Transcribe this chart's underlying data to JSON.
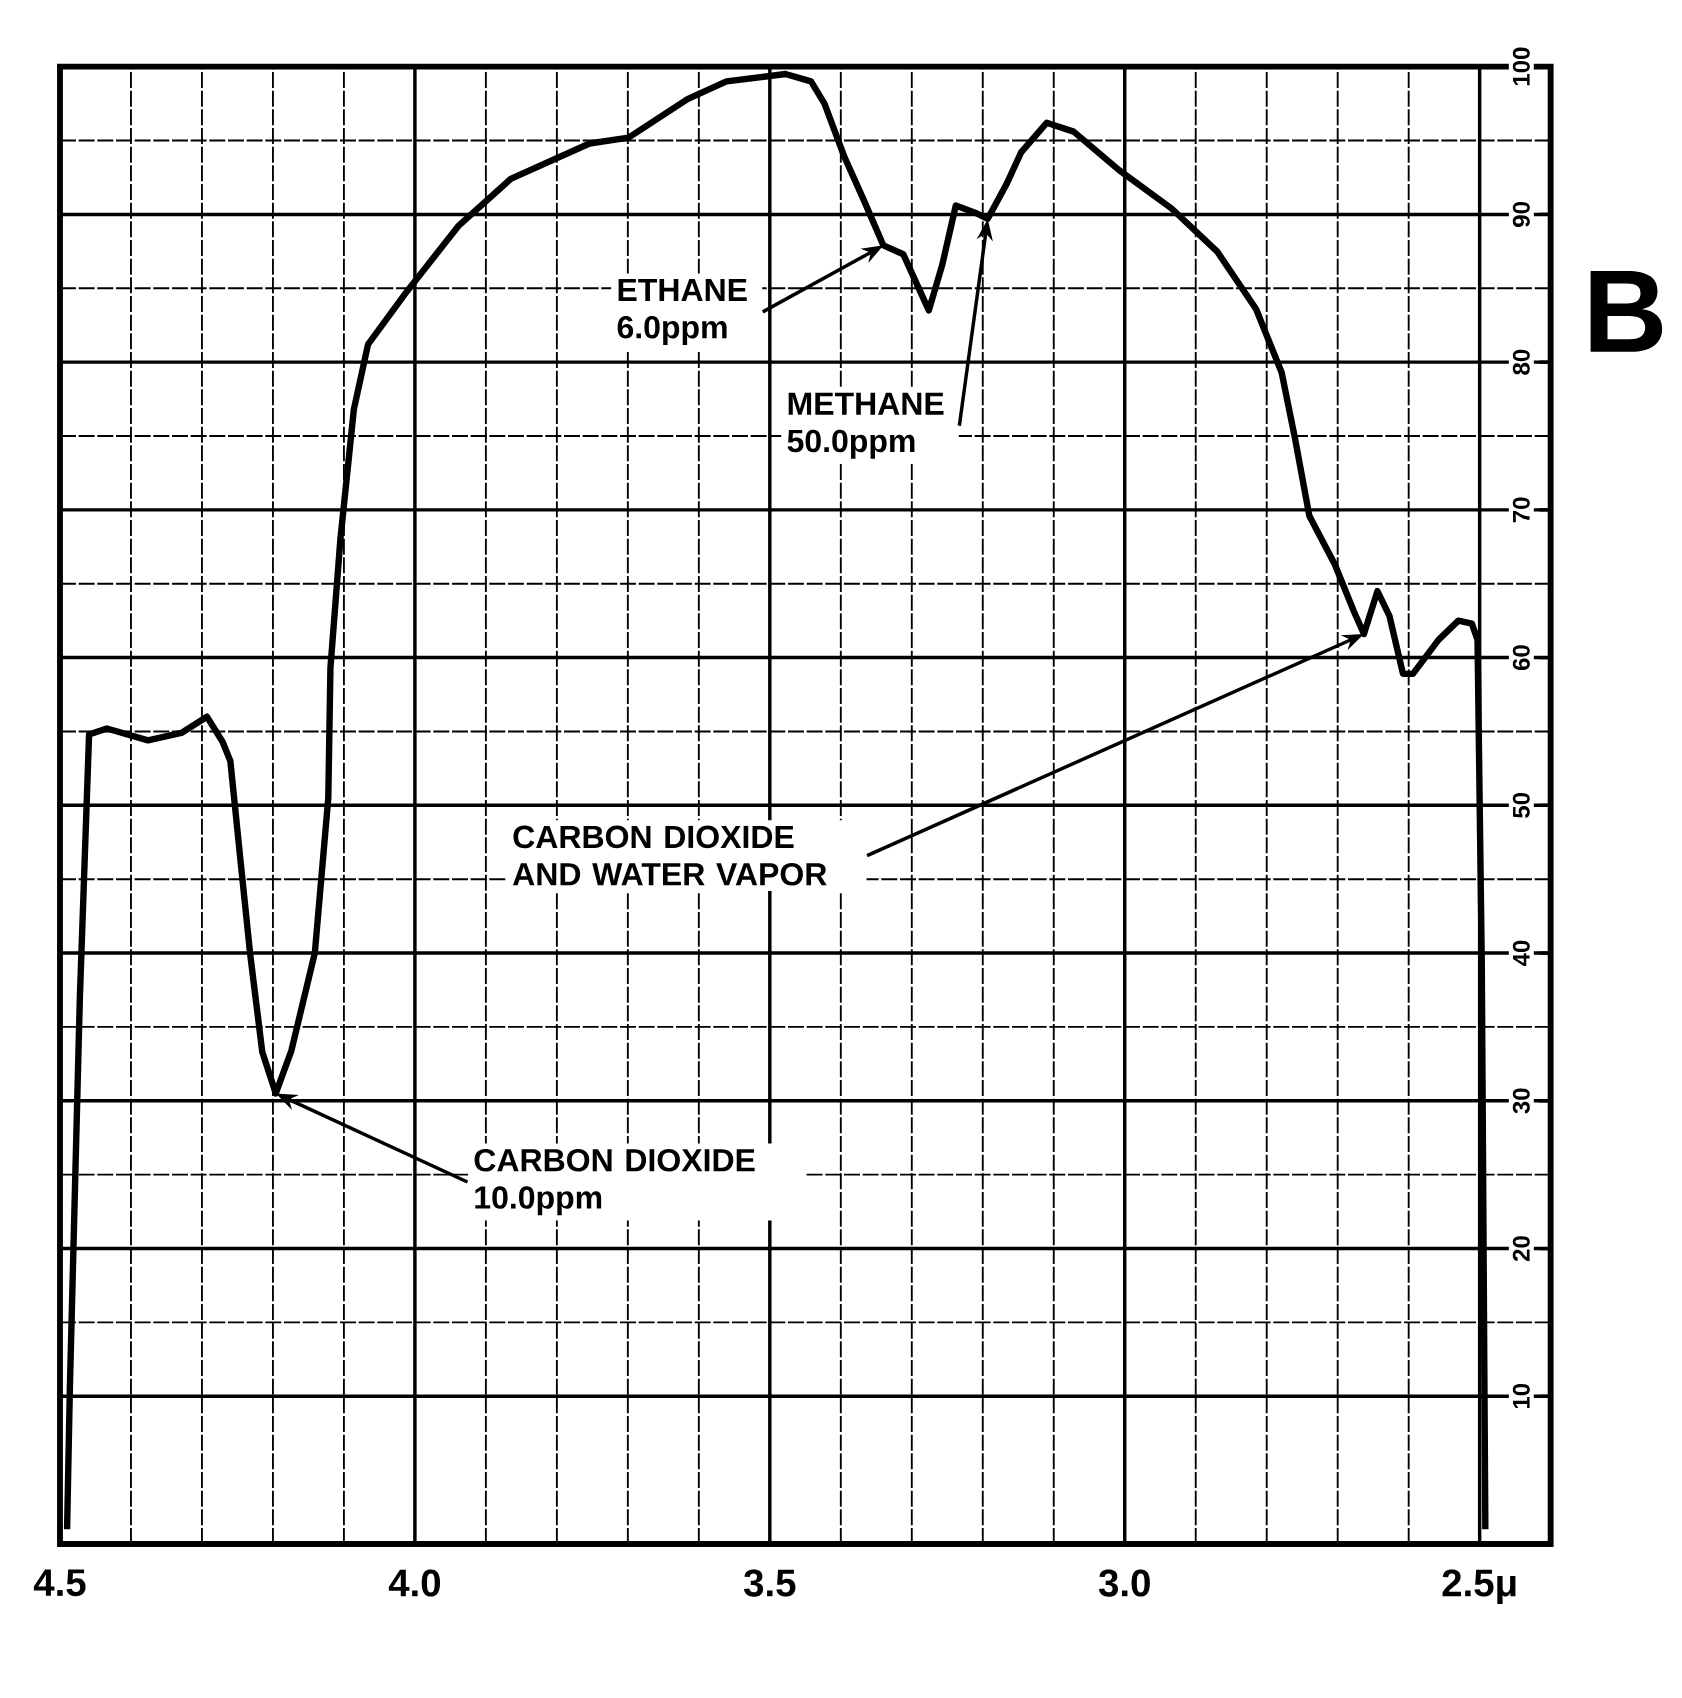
{
  "chart_data": {
    "type": "line",
    "x": [
      4.49,
      4.486,
      4.472,
      4.459,
      4.434,
      4.376,
      4.329,
      4.293,
      4.271,
      4.26,
      4.246,
      4.232,
      4.215,
      4.196,
      4.174,
      4.141,
      4.122,
      4.119,
      4.105,
      4.086,
      4.066,
      4.011,
      3.939,
      3.865,
      3.754,
      3.699,
      3.616,
      3.561,
      3.478,
      3.442,
      3.423,
      3.395,
      3.367,
      3.34,
      3.312,
      3.293,
      3.276,
      3.257,
      3.238,
      3.21,
      3.193,
      3.166,
      3.146,
      3.11,
      3.072,
      3.008,
      2.934,
      2.87,
      2.815,
      2.779,
      2.76,
      2.74,
      2.704,
      2.677,
      2.663,
      2.644,
      2.627,
      2.608,
      2.594,
      2.558,
      2.53,
      2.511,
      2.503,
      2.497,
      2.492
    ],
    "series": [
      {
        "color": "#000000",
        "values": [
          1,
          10.7,
          37,
          54.8,
          55.2,
          54.4,
          54.9,
          56,
          54.3,
          53,
          46.4,
          39.9,
          33.3,
          30.5,
          33.4,
          40,
          50.5,
          59.3,
          68,
          76.8,
          81.2,
          84.8,
          89.2,
          92.4,
          94.8,
          95.2,
          97.8,
          99,
          99.5,
          99,
          97.5,
          93.9,
          90.9,
          87.9,
          87.3,
          85.3,
          83.5,
          86.6,
          90.6,
          90.1,
          89.7,
          92.1,
          94.2,
          96.2,
          95.6,
          93,
          90.4,
          87.5,
          83.6,
          79.3,
          74.8,
          69.6,
          66.3,
          63.1,
          61.6,
          64.5,
          62.8,
          58.9,
          58.9,
          61.2,
          62.5,
          62.3,
          61.2,
          39.2,
          1
        ]
      }
    ],
    "xlim": [
      4.5,
      2.4
    ],
    "ylim": [
      0,
      100
    ],
    "xticks": [
      4.5,
      {
        "value": 4,
        "label": "4.0"
      },
      3.5,
      {
        "value": 3,
        "label": "3.0"
      },
      {
        "value": 2.5,
        "label": "2.5μ"
      }
    ],
    "yticks": [
      10,
      20,
      30,
      40,
      50,
      60,
      70,
      80,
      90,
      100
    ],
    "grid": true,
    "marker": "none",
    "line_style": "solid",
    "annotations": [
      {
        "text": "ETHANE 6.0ppm",
        "x": 3.34,
        "y": 87.9
      },
      {
        "text": "METHANE 50.0ppm",
        "x": 3.193,
        "y": 89.7
      },
      {
        "text": "CARBON DIOXIDE 10.0ppm",
        "x": 4.196,
        "y": 30.5
      },
      {
        "text": "CARBON DIOXIDE AND WATER VAPOR",
        "x": 2.663,
        "y": 61.6
      },
      "B"
    ]
  }
}
